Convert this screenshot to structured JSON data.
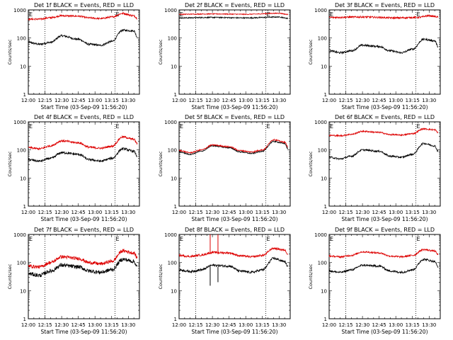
{
  "chart_data": [
    {
      "type": "line",
      "title": "Det 1f BLACK = Events, RED = LLD",
      "xlabel": "Start Time (03-Sep-09 11:56:20)",
      "ylabel": "Counts/sec",
      "xlim": [
        0,
        100
      ],
      "ylim": [
        1,
        1000
      ],
      "yscale": "log",
      "xtick_labels": [
        "12:00",
        "12:15",
        "12:30",
        "12:45",
        "13:00",
        "13:15",
        "13:30"
      ],
      "xtick_values": [
        0,
        15,
        30,
        45,
        60,
        75,
        90
      ],
      "ytick_labels": [
        "1",
        "10",
        "100",
        "1000"
      ],
      "ytick_values": [
        1,
        10,
        100,
        1000
      ],
      "vlines": [
        15,
        78
      ],
      "markers": [
        {
          "x": 0,
          "text": "E"
        },
        {
          "x": 78,
          "text": "E"
        }
      ],
      "series": [
        {
          "color": "#000000",
          "noise": 0.035,
          "x": [
            0,
            10,
            20,
            30,
            45,
            55,
            65,
            75,
            85,
            95,
            98
          ],
          "y": [
            70,
            60,
            70,
            120,
            90,
            60,
            55,
            75,
            190,
            180,
            110
          ]
        },
        {
          "color": "#dd0000",
          "noise": 0.03,
          "x": [
            0,
            10,
            20,
            30,
            45,
            55,
            65,
            75,
            85,
            95,
            98
          ],
          "y": [
            470,
            470,
            530,
            620,
            600,
            520,
            490,
            560,
            750,
            620,
            500
          ]
        }
      ]
    },
    {
      "type": "line",
      "title": "Det 2f BLACK = Events, RED = LLD",
      "xlabel": "Start Time (03-Sep-09 11:56:20)",
      "ylabel": "Counts/sec",
      "xlim": [
        0,
        100
      ],
      "ylim": [
        1,
        1000
      ],
      "yscale": "log",
      "xtick_labels": [
        "12:00",
        "12:15",
        "12:30",
        "12:45",
        "13:00",
        "13:15",
        "13:30"
      ],
      "xtick_values": [
        0,
        15,
        30,
        45,
        60,
        75,
        90
      ],
      "ytick_labels": [
        "1",
        "10",
        "100",
        "1000"
      ],
      "ytick_values": [
        1,
        10,
        100,
        1000
      ],
      "vlines": [
        15,
        78
      ],
      "markers": [
        {
          "x": 0,
          "text": "E"
        },
        {
          "x": 78,
          "text": "E"
        }
      ],
      "series": [
        {
          "color": "#000000",
          "noise": 0.02,
          "x": [
            0,
            30,
            60,
            90,
            98
          ],
          "y": [
            520,
            540,
            520,
            560,
            500
          ]
        },
        {
          "color": "#dd0000",
          "noise": 0.015,
          "x": [
            0,
            30,
            60,
            90,
            98
          ],
          "y": [
            700,
            720,
            700,
            760,
            690
          ]
        }
      ]
    },
    {
      "type": "line",
      "title": "Det 3f BLACK = Events, RED = LLD",
      "xlabel": "Start Time (03-Sep-09 11:56:20)",
      "ylabel": "Counts/sec",
      "xlim": [
        0,
        100
      ],
      "ylim": [
        1,
        1000
      ],
      "yscale": "log",
      "xtick_labels": [
        "12:00",
        "12:15",
        "12:30",
        "12:45",
        "13:00",
        "13:15",
        "13:30"
      ],
      "xtick_values": [
        0,
        15,
        30,
        45,
        60,
        75,
        90
      ],
      "ytick_labels": [
        "1",
        "10",
        "100",
        "1000"
      ],
      "ytick_values": [
        1,
        10,
        100,
        1000
      ],
      "vlines": [
        15,
        78
      ],
      "markers": [
        {
          "x": 0,
          "text": "E"
        },
        {
          "x": 78,
          "text": "E"
        }
      ],
      "series": [
        {
          "color": "#000000",
          "noise": 0.035,
          "x": [
            0,
            10,
            20,
            30,
            45,
            55,
            65,
            75,
            85,
            95,
            98
          ],
          "y": [
            35,
            30,
            35,
            55,
            50,
            35,
            30,
            40,
            90,
            80,
            50
          ]
        },
        {
          "color": "#dd0000",
          "noise": 0.03,
          "x": [
            0,
            30,
            60,
            80,
            90,
            98
          ],
          "y": [
            540,
            560,
            520,
            540,
            620,
            560
          ]
        }
      ]
    },
    {
      "type": "line",
      "title": "Det 4f BLACK = Events, RED = LLD",
      "xlabel": "Start Time (03-Sep-09 11:56:20)",
      "ylabel": "Counts/sec",
      "xlim": [
        0,
        100
      ],
      "ylim": [
        1,
        1000
      ],
      "yscale": "log",
      "xtick_labels": [
        "12:00",
        "12:15",
        "12:30",
        "12:45",
        "13:00",
        "13:15",
        "13:30"
      ],
      "xtick_values": [
        0,
        15,
        30,
        45,
        60,
        75,
        90
      ],
      "ytick_labels": [
        "1",
        "10",
        "100",
        "1000"
      ],
      "ytick_values": [
        1,
        10,
        100,
        1000
      ],
      "vlines": [
        15,
        78
      ],
      "markers": [
        {
          "x": 0,
          "text": "E"
        },
        {
          "x": 78,
          "text": "E"
        }
      ],
      "series": [
        {
          "color": "#000000",
          "noise": 0.04,
          "x": [
            0,
            10,
            20,
            30,
            45,
            55,
            65,
            75,
            85,
            95,
            98
          ],
          "y": [
            45,
            40,
            50,
            80,
            70,
            45,
            40,
            50,
            110,
            90,
            60
          ]
        },
        {
          "color": "#dd0000",
          "noise": 0.035,
          "x": [
            0,
            10,
            20,
            30,
            45,
            55,
            65,
            75,
            85,
            95,
            98
          ],
          "y": [
            120,
            110,
            140,
            210,
            180,
            125,
            115,
            135,
            290,
            240,
            170
          ]
        }
      ]
    },
    {
      "type": "line",
      "title": "Det 5f BLACK = Events, RED = LLD",
      "xlabel": "Start Time (03-Sep-09 11:56:20)",
      "ylabel": "Counts/sec",
      "xlim": [
        0,
        100
      ],
      "ylim": [
        1,
        1000
      ],
      "yscale": "log",
      "xtick_labels": [
        "12:00",
        "12:15",
        "12:30",
        "12:45",
        "13:00",
        "13:15",
        "13:30"
      ],
      "xtick_values": [
        0,
        15,
        30,
        45,
        60,
        75,
        90
      ],
      "ytick_labels": [
        "1",
        "10",
        "100",
        "1000"
      ],
      "ytick_values": [
        1,
        10,
        100,
        1000
      ],
      "vlines": [
        15,
        78
      ],
      "markers": [
        {
          "x": 0,
          "text": "E"
        },
        {
          "x": 78,
          "text": "E"
        }
      ],
      "series": [
        {
          "color": "#000000",
          "noise": 0.02,
          "x": [
            0,
            10,
            20,
            30,
            45,
            55,
            65,
            75,
            85,
            95,
            98
          ],
          "y": [
            85,
            70,
            90,
            140,
            120,
            85,
            75,
            90,
            200,
            170,
            110
          ]
        },
        {
          "color": "#dd0000",
          "noise": 0.02,
          "x": [
            0,
            10,
            20,
            30,
            45,
            55,
            65,
            75,
            85,
            95,
            98
          ],
          "y": [
            95,
            80,
            100,
            150,
            130,
            95,
            85,
            100,
            230,
            190,
            130
          ]
        }
      ]
    },
    {
      "type": "line",
      "title": "Det 6f BLACK = Events, RED = LLD",
      "xlabel": "Start Time (03-Sep-09 11:56:20)",
      "ylabel": "Counts/sec",
      "xlim": [
        0,
        100
      ],
      "ylim": [
        1,
        1000
      ],
      "yscale": "log",
      "xtick_labels": [
        "12:00",
        "12:15",
        "12:30",
        "12:45",
        "13:00",
        "13:15",
        "13:30"
      ],
      "xtick_values": [
        0,
        15,
        30,
        45,
        60,
        75,
        90
      ],
      "ytick_labels": [
        "1",
        "10",
        "100",
        "1000"
      ],
      "ytick_values": [
        1,
        10,
        100,
        1000
      ],
      "vlines": [
        15,
        78
      ],
      "markers": [
        {
          "x": 0,
          "text": "E"
        },
        {
          "x": 78,
          "text": "E"
        }
      ],
      "series": [
        {
          "color": "#000000",
          "noise": 0.03,
          "x": [
            0,
            10,
            20,
            30,
            45,
            55,
            65,
            75,
            85,
            95,
            98
          ],
          "y": [
            55,
            48,
            60,
            100,
            90,
            60,
            55,
            70,
            170,
            140,
            90
          ]
        },
        {
          "color": "#dd0000",
          "noise": 0.025,
          "x": [
            0,
            10,
            20,
            30,
            45,
            55,
            65,
            75,
            85,
            95,
            98
          ],
          "y": [
            330,
            320,
            360,
            460,
            420,
            350,
            340,
            380,
            560,
            520,
            420
          ]
        }
      ]
    },
    {
      "type": "line",
      "title": "Det 7f BLACK = Events, RED = LLD",
      "xlabel": "Start Time (03-Sep-09 11:56:20)",
      "ylabel": "Counts/sec",
      "xlim": [
        0,
        100
      ],
      "ylim": [
        1,
        1000
      ],
      "yscale": "log",
      "xtick_labels": [
        "12:00",
        "12:15",
        "12:30",
        "12:45",
        "13:00",
        "13:15",
        "13:30"
      ],
      "xtick_values": [
        0,
        15,
        30,
        45,
        60,
        75,
        90
      ],
      "ytick_labels": [
        "1",
        "10",
        "100",
        "1000"
      ],
      "ytick_values": [
        1,
        10,
        100,
        1000
      ],
      "vlines": [
        15,
        78
      ],
      "markers": [
        {
          "x": 0,
          "text": "E"
        },
        {
          "x": 78,
          "text": "E"
        }
      ],
      "series": [
        {
          "color": "#000000",
          "noise": 0.07,
          "x": [
            0,
            10,
            20,
            30,
            45,
            55,
            65,
            75,
            85,
            95,
            98
          ],
          "y": [
            40,
            35,
            50,
            80,
            70,
            50,
            45,
            55,
            130,
            110,
            70
          ]
        },
        {
          "color": "#dd0000",
          "noise": 0.06,
          "x": [
            0,
            10,
            20,
            30,
            45,
            55,
            65,
            75,
            85,
            95,
            98
          ],
          "y": [
            75,
            70,
            100,
            160,
            140,
            100,
            90,
            110,
            260,
            220,
            150
          ]
        }
      ]
    },
    {
      "type": "line",
      "title": "Det 8f BLACK = Events, RED = LLD",
      "xlabel": "Start Time (03-Sep-09 11:56:20)",
      "ylabel": "Counts/sec",
      "xlim": [
        0,
        100
      ],
      "ylim": [
        1,
        1000
      ],
      "yscale": "log",
      "xtick_labels": [
        "12:00",
        "12:15",
        "12:30",
        "12:45",
        "13:00",
        "13:15",
        "13:30"
      ],
      "xtick_values": [
        0,
        15,
        30,
        45,
        60,
        75,
        90
      ],
      "ytick_labels": [
        "1",
        "10",
        "100",
        "1000"
      ],
      "ytick_values": [
        1,
        10,
        100,
        1000
      ],
      "vlines": [
        15,
        78
      ],
      "markers": [
        {
          "x": 0,
          "text": "E"
        },
        {
          "x": 78,
          "text": "E"
        }
      ],
      "spikes": [
        {
          "color": "#000000",
          "x": 28,
          "y": 15,
          "from": 70
        },
        {
          "color": "#dd0000",
          "x": 28,
          "y": 1000,
          "from": 200
        },
        {
          "color": "#000000",
          "x": 35,
          "y": 20,
          "from": 70
        },
        {
          "color": "#dd0000",
          "x": 35,
          "y": 1000,
          "from": 200
        }
      ],
      "series": [
        {
          "color": "#000000",
          "noise": 0.04,
          "x": [
            0,
            10,
            20,
            30,
            45,
            55,
            65,
            75,
            85,
            95,
            98
          ],
          "y": [
            55,
            48,
            55,
            80,
            75,
            50,
            45,
            55,
            140,
            110,
            70
          ]
        },
        {
          "color": "#dd0000",
          "noise": 0.035,
          "x": [
            0,
            10,
            20,
            30,
            45,
            55,
            65,
            75,
            85,
            95,
            98
          ],
          "y": [
            180,
            165,
            185,
            230,
            220,
            175,
            160,
            180,
            320,
            280,
            200
          ]
        }
      ]
    },
    {
      "type": "line",
      "title": "Det 9f BLACK = Events, RED = LLD",
      "xlabel": "Start Time (03-Sep-09 11:56:20)",
      "ylabel": "Counts/sec",
      "xlim": [
        0,
        100
      ],
      "ylim": [
        1,
        1000
      ],
      "yscale": "log",
      "xtick_labels": [
        "12:00",
        "12:15",
        "12:30",
        "12:45",
        "13:00",
        "13:15",
        "13:30"
      ],
      "xtick_values": [
        0,
        15,
        30,
        45,
        60,
        75,
        90
      ],
      "ytick_labels": [
        "1",
        "10",
        "100",
        "1000"
      ],
      "ytick_values": [
        1,
        10,
        100,
        1000
      ],
      "vlines": [
        15,
        78
      ],
      "markers": [
        {
          "x": 0,
          "text": "E"
        },
        {
          "x": 78,
          "text": "E"
        }
      ],
      "series": [
        {
          "color": "#000000",
          "noise": 0.035,
          "x": [
            0,
            10,
            20,
            30,
            45,
            55,
            65,
            75,
            85,
            95,
            98
          ],
          "y": [
            50,
            45,
            55,
            80,
            75,
            50,
            45,
            55,
            130,
            110,
            70
          ]
        },
        {
          "color": "#dd0000",
          "noise": 0.03,
          "x": [
            0,
            10,
            20,
            30,
            45,
            55,
            65,
            75,
            85,
            95,
            98
          ],
          "y": [
            170,
            160,
            180,
            240,
            220,
            170,
            160,
            180,
            290,
            260,
            190
          ]
        }
      ]
    }
  ]
}
